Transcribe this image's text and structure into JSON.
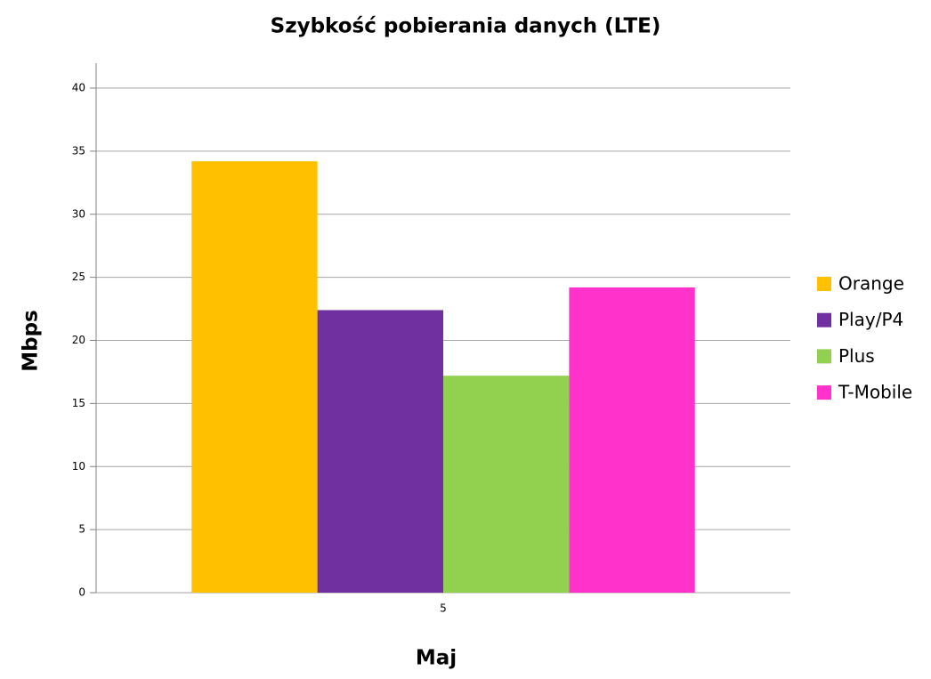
{
  "chart_data": {
    "type": "bar",
    "title": "Szybkość pobierania danych (LTE)",
    "x_label": "Maj",
    "y_label": "Mbps",
    "categories": [
      "5"
    ],
    "series": [
      {
        "name": "Orange",
        "color": "#ffc000",
        "values": [
          34.2
        ]
      },
      {
        "name": "Play/P4",
        "color": "#7030a0",
        "values": [
          22.4
        ]
      },
      {
        "name": "Plus",
        "color": "#92d050",
        "values": [
          17.2
        ]
      },
      {
        "name": "T-Mobile",
        "color": "#ff33cc",
        "values": [
          24.2
        ]
      }
    ],
    "ylim": [
      0,
      40
    ],
    "yticks": [
      0,
      5,
      10,
      15,
      20,
      25,
      30,
      35,
      40
    ],
    "grid": true,
    "legend": "right"
  }
}
